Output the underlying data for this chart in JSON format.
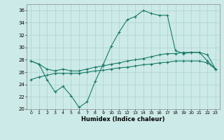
{
  "title": "",
  "xlabel": "Humidex (Indice chaleur)",
  "ylabel": "",
  "background_color": "#cceae7",
  "grid_color": "#aad4d0",
  "line_color": "#1a7a6a",
  "xlim": [
    -0.5,
    23.5
  ],
  "ylim": [
    20,
    37
  ],
  "xticks": [
    0,
    1,
    2,
    3,
    4,
    5,
    6,
    7,
    8,
    9,
    10,
    11,
    12,
    13,
    14,
    15,
    16,
    17,
    18,
    19,
    20,
    21,
    22,
    23
  ],
  "yticks": [
    20,
    22,
    24,
    26,
    28,
    30,
    32,
    34,
    36
  ],
  "x": [
    0,
    1,
    2,
    3,
    4,
    5,
    6,
    7,
    8,
    9,
    10,
    11,
    12,
    13,
    14,
    15,
    16,
    17,
    18,
    19,
    20,
    21,
    22,
    23
  ],
  "line1": [
    27.8,
    27.3,
    24.8,
    22.8,
    23.7,
    22.2,
    20.3,
    21.2,
    24.5,
    27.2,
    30.2,
    32.5,
    34.5,
    35.0,
    36.0,
    35.5,
    35.2,
    35.2,
    29.5,
    29.0,
    29.2,
    29.2,
    27.8,
    26.5
  ],
  "line2": [
    27.8,
    27.3,
    26.5,
    26.2,
    26.5,
    26.2,
    26.2,
    26.5,
    26.8,
    27.0,
    27.3,
    27.5,
    27.8,
    28.0,
    28.2,
    28.5,
    28.8,
    29.0,
    29.0,
    29.2,
    29.2,
    29.2,
    28.8,
    26.5
  ],
  "line3": [
    24.8,
    25.2,
    25.5,
    25.8,
    25.8,
    25.8,
    25.8,
    26.0,
    26.2,
    26.3,
    26.5,
    26.7,
    26.8,
    27.0,
    27.2,
    27.3,
    27.5,
    27.6,
    27.8,
    27.8,
    27.8,
    27.8,
    27.5,
    26.5
  ]
}
